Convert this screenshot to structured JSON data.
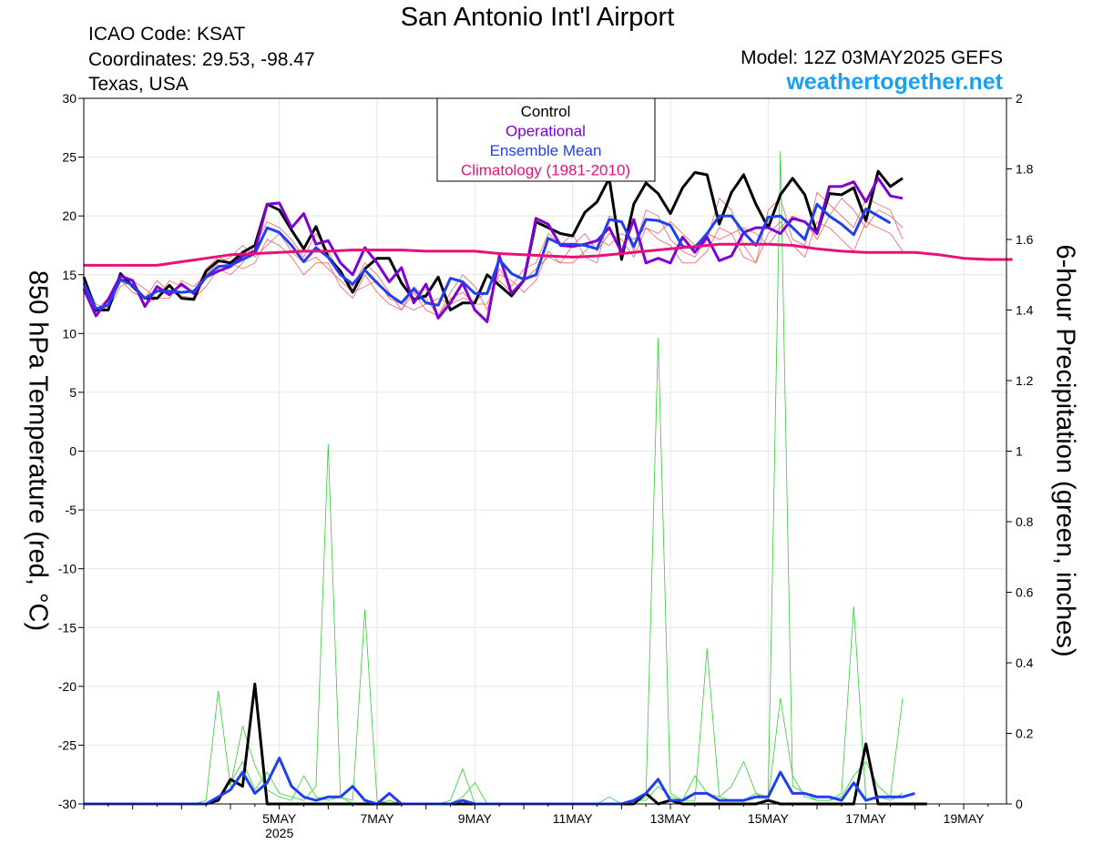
{
  "header": {
    "title": "San Antonio Int'l Airport",
    "icao": "ICAO Code: KSAT",
    "coordinates": "Coordinates: 29.53, -98.47",
    "region": "Texas, USA",
    "model": "Model: 12Z 03MAY2025 GEFS",
    "site": "weathertogether.net"
  },
  "colors": {
    "control": "#000000",
    "operational": "#7f00d0",
    "ensemble_mean": "#2040f0",
    "climatology": "#e8107a",
    "members_temp": "#f06060",
    "members_precip": "#30d030",
    "site": "#1aa0f0"
  },
  "chart_data": {
    "type": "line",
    "ylabel_left": "850 hPa Temperature (red, °C)",
    "ylabel_right": "6-hour Precipitation (green, inches)",
    "ylim_left": [
      -30,
      30
    ],
    "ylim_right": [
      0,
      2
    ],
    "yticks_left": [
      30,
      25,
      20,
      15,
      10,
      5,
      0,
      -5,
      -10,
      -15,
      -20,
      -25,
      -30
    ],
    "yticks_right": [
      2,
      1.8,
      1.6,
      1.4,
      1.2,
      1,
      0.8,
      0.6,
      0.4,
      0.2,
      0
    ],
    "x_start_hour": 12,
    "x_step_hours": 6,
    "x_end_hour": 396,
    "x_ticks": [
      {
        "hour": 108,
        "label": "5MAY",
        "sublabel": "2025"
      },
      {
        "hour": 156,
        "label": "7MAY",
        "sublabel": ""
      },
      {
        "hour": 204,
        "label": "9MAY",
        "sublabel": ""
      },
      {
        "hour": 252,
        "label": "11MAY",
        "sublabel": ""
      },
      {
        "hour": 300,
        "label": "13MAY",
        "sublabel": ""
      },
      {
        "hour": 348,
        "label": "15MAY",
        "sublabel": ""
      },
      {
        "hour": 396,
        "label": "17MAY",
        "sublabel": ""
      },
      {
        "hour": 444,
        "label": "19MAY",
        "sublabel": ""
      }
    ],
    "legend": {
      "placement": "top-center",
      "entries": [
        "Control",
        "Operational",
        "Ensemble Mean",
        "Climatology (1981-2010)"
      ]
    },
    "series": [
      {
        "name": "Control",
        "axis": "left",
        "values": [
          14.8,
          12.0,
          12.0,
          15.1,
          14.0,
          13.0,
          13.0,
          14.1,
          13.0,
          12.9,
          15.3,
          16.2,
          16.0,
          16.9,
          17.5,
          21.0,
          20.5,
          18.8,
          17.2,
          19.1,
          16.5,
          15.3,
          13.5,
          15.5,
          16.4,
          16.4,
          14.3,
          12.9,
          13.2,
          14.8,
          12.0,
          12.6,
          12.6,
          15.0,
          14.1,
          13.2,
          14.5,
          19.5,
          19.0,
          18.5,
          18.3,
          20.3,
          21.2,
          23.2,
          16.3,
          21.0,
          22.8,
          21.9,
          20.2,
          22.4,
          23.7,
          23.5,
          19.3,
          22.0,
          23.5,
          21.0,
          19.0,
          21.8,
          23.2,
          21.8,
          18.5,
          21.9,
          21.8,
          22.4,
          19.6,
          23.8,
          22.5,
          23.2
        ]
      },
      {
        "name": "Operational",
        "axis": "left",
        "values": [
          13.8,
          11.5,
          12.9,
          14.9,
          14.5,
          12.3,
          14.0,
          13.3,
          14.2,
          13.4,
          14.8,
          15.3,
          15.7,
          16.6,
          17.0,
          21.0,
          21.1,
          19.0,
          20.2,
          17.6,
          17.9,
          16.0,
          15.0,
          17.3,
          16.0,
          14.4,
          15.6,
          12.6,
          14.2,
          11.3,
          12.6,
          14.3,
          12.0,
          11.0,
          16.6,
          13.4,
          14.5,
          19.8,
          19.3,
          17.5,
          17.4,
          17.6,
          17.9,
          19.0,
          16.9,
          19.7,
          16.0,
          16.4,
          16.0,
          18.2,
          16.9,
          18.2,
          16.2,
          16.6,
          18.6,
          19.0,
          19.0,
          18.5,
          19.8,
          19.5,
          18.5,
          22.5,
          22.5,
          22.9,
          21.2,
          23.2,
          21.7,
          21.5
        ]
      },
      {
        "name": "Ensemble Mean",
        "axis": "left",
        "values": [
          14.3,
          12.1,
          12.4,
          14.6,
          14.1,
          13.0,
          13.6,
          13.6,
          13.5,
          13.6,
          14.8,
          15.7,
          15.8,
          16.3,
          16.8,
          19.0,
          18.6,
          17.5,
          16.1,
          17.3,
          16.5,
          15.0,
          14.2,
          15.4,
          14.3,
          13.3,
          12.6,
          13.8,
          12.6,
          12.4,
          14.7,
          14.4,
          13.4,
          13.4,
          16.3,
          15.1,
          14.6,
          15.0,
          18.1,
          17.6,
          17.6,
          17.5,
          17.2,
          19.7,
          19.5,
          17.4,
          19.7,
          19.6,
          19.2,
          17.4,
          17.3,
          18.5,
          20.0,
          20.0,
          18.6,
          17.5,
          19.9,
          20.0,
          19.0,
          18.0,
          21.0,
          20.0,
          19.3,
          18.4,
          20.6,
          20.0,
          19.4
        ]
      },
      {
        "name": "Climatology (1981-2010)",
        "axis": "left",
        "values": [
          15.8,
          15.8,
          15.8,
          15.8,
          16.1,
          16.4,
          16.7,
          16.8,
          16.9,
          17.0,
          17.0,
          17.1,
          17.1,
          17.1,
          17.0,
          17.0,
          17.0,
          16.8,
          16.7,
          16.6,
          16.5,
          16.6,
          16.8,
          17.0,
          17.2,
          17.4,
          17.6,
          17.6,
          17.6,
          17.5,
          17.2,
          17.0,
          16.9,
          16.9,
          16.9,
          16.7,
          16.4,
          16.3,
          16.3
        ]
      },
      {
        "name": "Control",
        "axis": "right",
        "values": [
          0,
          0,
          0,
          0,
          0,
          0,
          0,
          0,
          0,
          0,
          0,
          0.01,
          0.07,
          0.05,
          0.34,
          0,
          0,
          0,
          0,
          0,
          0,
          0,
          0,
          0,
          0,
          0,
          0,
          0,
          0,
          0,
          0,
          0,
          0,
          0,
          0,
          0,
          0,
          0,
          0,
          0,
          0,
          0,
          0,
          0,
          0,
          0,
          0.03,
          0,
          0.01,
          0,
          0,
          0,
          0,
          0,
          0,
          0,
          0.01,
          0,
          0,
          0,
          0,
          0,
          0,
          0,
          0.17,
          0,
          0,
          0,
          0,
          0
        ]
      },
      {
        "name": "Ensemble Mean",
        "axis": "right",
        "values": [
          0,
          0,
          0,
          0,
          0,
          0,
          0,
          0,
          0,
          0,
          0,
          0.02,
          0.04,
          0.09,
          0.03,
          0.06,
          0.13,
          0.05,
          0.02,
          0.01,
          0.02,
          0.02,
          0.05,
          0.01,
          0,
          0.03,
          0,
          0,
          0,
          0,
          0,
          0.01,
          0,
          0,
          0,
          0,
          0,
          0,
          0,
          0,
          0,
          0,
          0,
          0,
          0,
          0.01,
          0.03,
          0.07,
          0.01,
          0.01,
          0.03,
          0.03,
          0.01,
          0.01,
          0.01,
          0.02,
          0.02,
          0.09,
          0.03,
          0.03,
          0.02,
          0.02,
          0.01,
          0.06,
          0.01,
          0.02,
          0.02,
          0.02,
          0.03
        ]
      }
    ],
    "members_temperature": [
      [
        14.5,
        12.5,
        12.0,
        14.0,
        14.5,
        13.8,
        13.0,
        13.0,
        14.5,
        14.0,
        15.0,
        16.0,
        16.5,
        17.5,
        16.5,
        17.5,
        18.5,
        17.0,
        16.0,
        16.5,
        15.5,
        14.5,
        13.5,
        14.0,
        14.5,
        13.0,
        12.5,
        12.0,
        12.5,
        13.0,
        12.5,
        13.0,
        12.8,
        13.5,
        14.5,
        13.5,
        14.5,
        15.5,
        16.5,
        16.0,
        16.0,
        17.0,
        18.0,
        17.5,
        18.5,
        18.0,
        19.0,
        18.5,
        19.5,
        18.5,
        17.5,
        18.5,
        18.0,
        18.5,
        19.0,
        18.5,
        17.5,
        19.0,
        20.0,
        19.5,
        18.0,
        20.0,
        21.5,
        20.5,
        19.0,
        20.5,
        20.0,
        19.0
      ],
      [
        13.5,
        11.8,
        12.5,
        14.5,
        13.5,
        13.0,
        14.5,
        13.5,
        13.2,
        13.0,
        14.0,
        15.5,
        15.0,
        16.0,
        17.5,
        19.5,
        19.0,
        18.0,
        16.5,
        18.5,
        17.0,
        15.0,
        14.0,
        16.0,
        15.0,
        13.5,
        12.0,
        14.0,
        13.0,
        11.5,
        13.5,
        15.0,
        14.0,
        12.0,
        15.5,
        14.0,
        15.5,
        16.0,
        18.5,
        17.5,
        18.5,
        16.5,
        16.0,
        20.0,
        19.5,
        17.0,
        20.5,
        20.0,
        18.0,
        17.0,
        16.5,
        18.0,
        21.5,
        20.5,
        17.5,
        16.0,
        20.5,
        21.5,
        18.0,
        17.5,
        22.0,
        21.0,
        20.0,
        19.0,
        21.5,
        21.0,
        20.5,
        18.0
      ],
      [
        14.0,
        12.0,
        13.0,
        15.0,
        14.5,
        12.5,
        13.0,
        14.5,
        14.0,
        13.5,
        15.5,
        16.5,
        16.0,
        15.5,
        16.0,
        18.0,
        17.5,
        16.5,
        15.0,
        16.0,
        16.0,
        14.0,
        13.0,
        15.0,
        13.5,
        12.5,
        12.0,
        13.5,
        12.0,
        11.5,
        13.0,
        13.5,
        12.5,
        12.5,
        15.0,
        14.5,
        13.5,
        14.5,
        17.0,
        16.0,
        17.5,
        18.5,
        17.0,
        18.5,
        18.0,
        16.5,
        19.0,
        18.0,
        17.5,
        16.0,
        16.0,
        17.0,
        19.0,
        18.5,
        16.5,
        16.0,
        18.5,
        19.5,
        17.5,
        16.5,
        19.5,
        19.0,
        18.0,
        17.0,
        19.5,
        19.0,
        18.5,
        17.0
      ]
    ],
    "members_precipitation": [
      [
        0,
        0,
        0,
        0,
        0,
        0,
        0,
        0,
        0,
        0,
        0,
        0.02,
        0.06,
        0.12,
        0.04,
        0.09,
        0.03,
        0.02,
        0.01,
        0.05,
        1.02,
        0.02,
        0.01,
        0.55,
        0.01,
        0,
        0,
        0,
        0,
        0,
        0,
        0.02,
        0.06,
        0,
        0,
        0,
        0,
        0,
        0,
        0,
        0,
        0,
        0,
        0,
        0,
        0,
        0.02,
        1.32,
        0.03,
        0.01,
        0.01,
        0.44,
        0.02,
        0.01,
        0.01,
        0.03,
        0.02,
        1.85,
        0.05,
        0.03,
        0.01,
        0.01,
        0.03,
        0.56,
        0.01,
        0.02,
        0.01,
        0.03
      ],
      [
        0,
        0,
        0,
        0,
        0,
        0,
        0,
        0,
        0,
        0,
        0.01,
        0.32,
        0.05,
        0.22,
        0.11,
        0.04,
        0.02,
        0.01,
        0.08,
        0.02,
        0.01,
        0.02,
        0,
        0,
        0,
        0.01,
        0,
        0,
        0,
        0,
        0.01,
        0.1,
        0,
        0,
        0,
        0,
        0,
        0,
        0,
        0,
        0,
        0,
        0,
        0.02,
        0,
        0.01,
        0.01,
        0.05,
        0.02,
        0.01,
        0.08,
        0.03,
        0.02,
        0.05,
        0.12,
        0.03,
        0.01,
        0.3,
        0.08,
        0.02,
        0.01,
        0.01,
        0.02,
        0.08,
        0.12,
        0.05,
        0.02,
        0.3
      ]
    ]
  }
}
